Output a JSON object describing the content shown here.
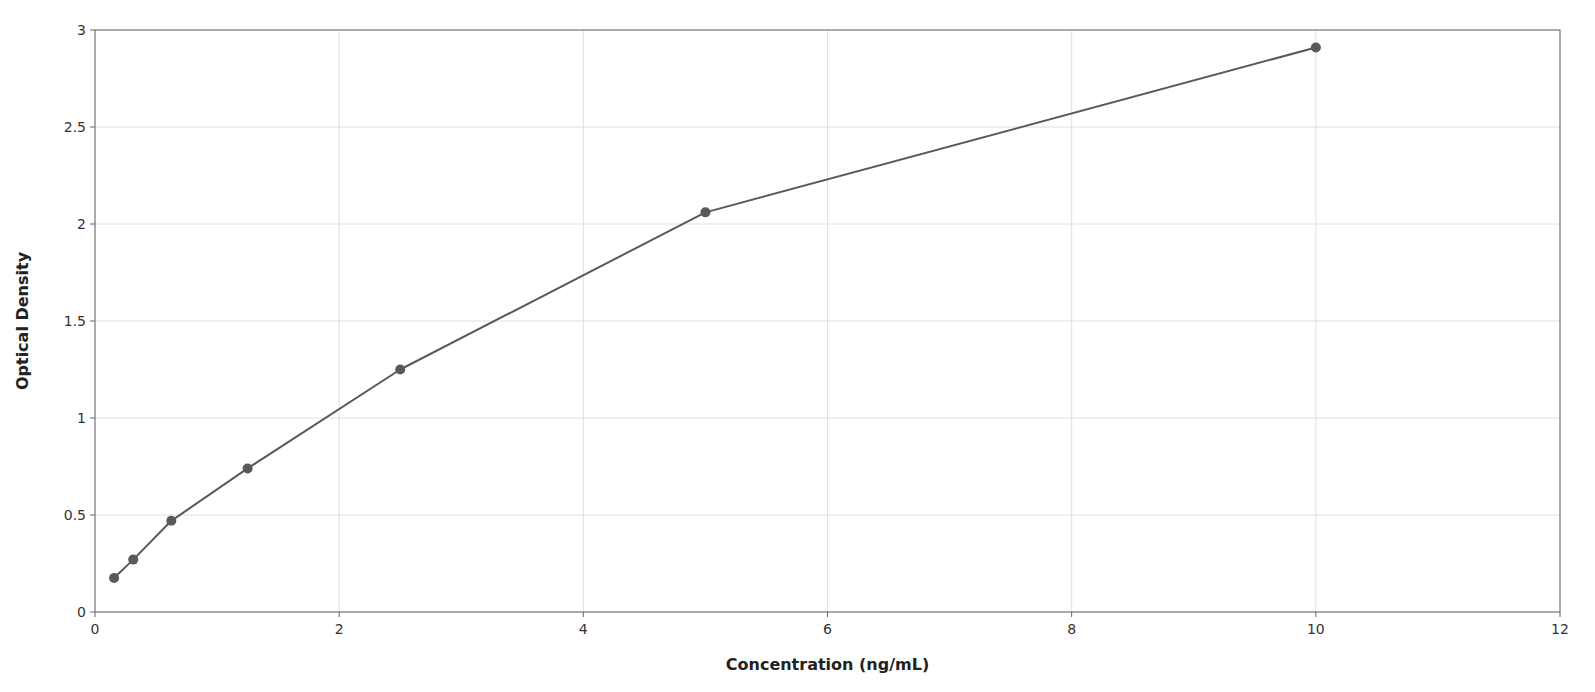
{
  "chart_data": {
    "type": "line",
    "x": [
      0.156,
      0.313,
      0.625,
      1.25,
      2.5,
      5.0,
      10.0
    ],
    "series": [
      {
        "values": [
          0.175,
          0.27,
          0.47,
          0.74,
          1.25,
          2.06,
          2.91
        ],
        "color": "#595959",
        "marker": "circle"
      }
    ],
    "xlabel": "Concentration (ng/mL)",
    "ylabel": "Optical Density",
    "xlim": [
      0,
      12
    ],
    "ylim": [
      0,
      3
    ],
    "xticks": [
      0,
      2,
      4,
      6,
      8,
      10,
      12
    ],
    "yticks": [
      0,
      0.5,
      1,
      1.5,
      2,
      2.5,
      3
    ],
    "grid": true
  }
}
